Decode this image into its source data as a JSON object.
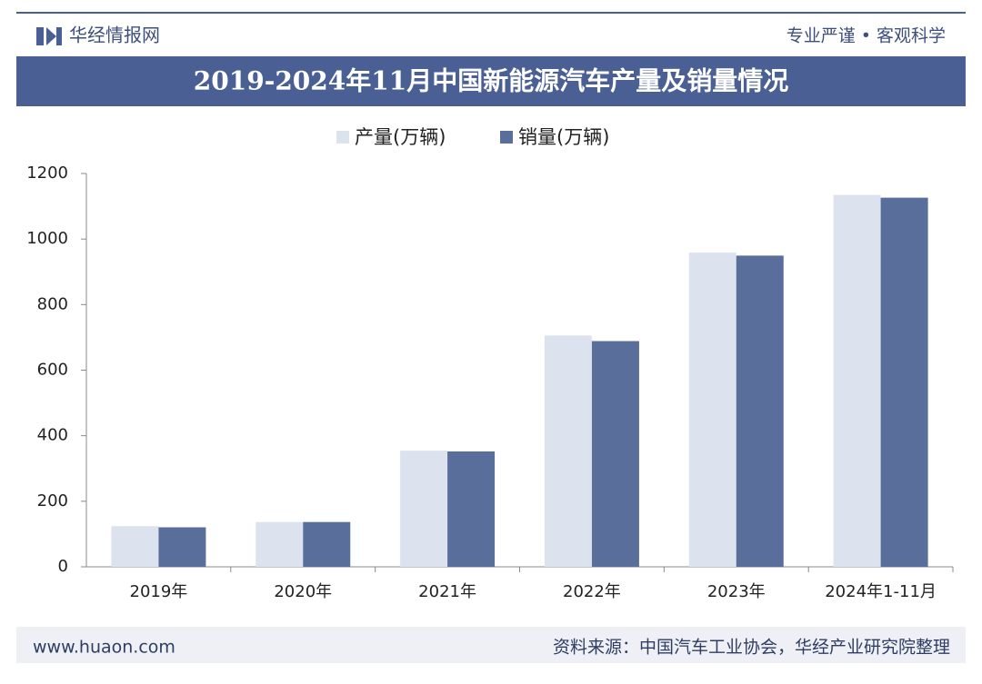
{
  "header": {
    "brand": "华经情报网",
    "slogan": "专业严谨 • 客观科学"
  },
  "chart_data": {
    "type": "bar",
    "title": "2019-2024年11月中国新能源汽车产量及销量情况",
    "categories": [
      "2019年",
      "2020年",
      "2021年",
      "2022年",
      "2023年",
      "2024年1-11月"
    ],
    "series": [
      {
        "name": "产量(万辆)",
        "color": "#dde3ee",
        "values": [
          124.2,
          136.6,
          354.5,
          705.8,
          958.7,
          1134.5
        ]
      },
      {
        "name": "销量(万辆)",
        "color": "#5a6e9c",
        "values": [
          120.6,
          136.7,
          352.1,
          688.7,
          949.5,
          1126.2
        ]
      }
    ],
    "ylim": [
      0,
      1200
    ],
    "yticks": [
      0,
      200,
      400,
      600,
      800,
      1000,
      1200
    ],
    "legend": "top"
  },
  "footer": {
    "website": "www.huaon.com",
    "source": "资料来源：中国汽车工业协会，华经产业研究院整理"
  }
}
